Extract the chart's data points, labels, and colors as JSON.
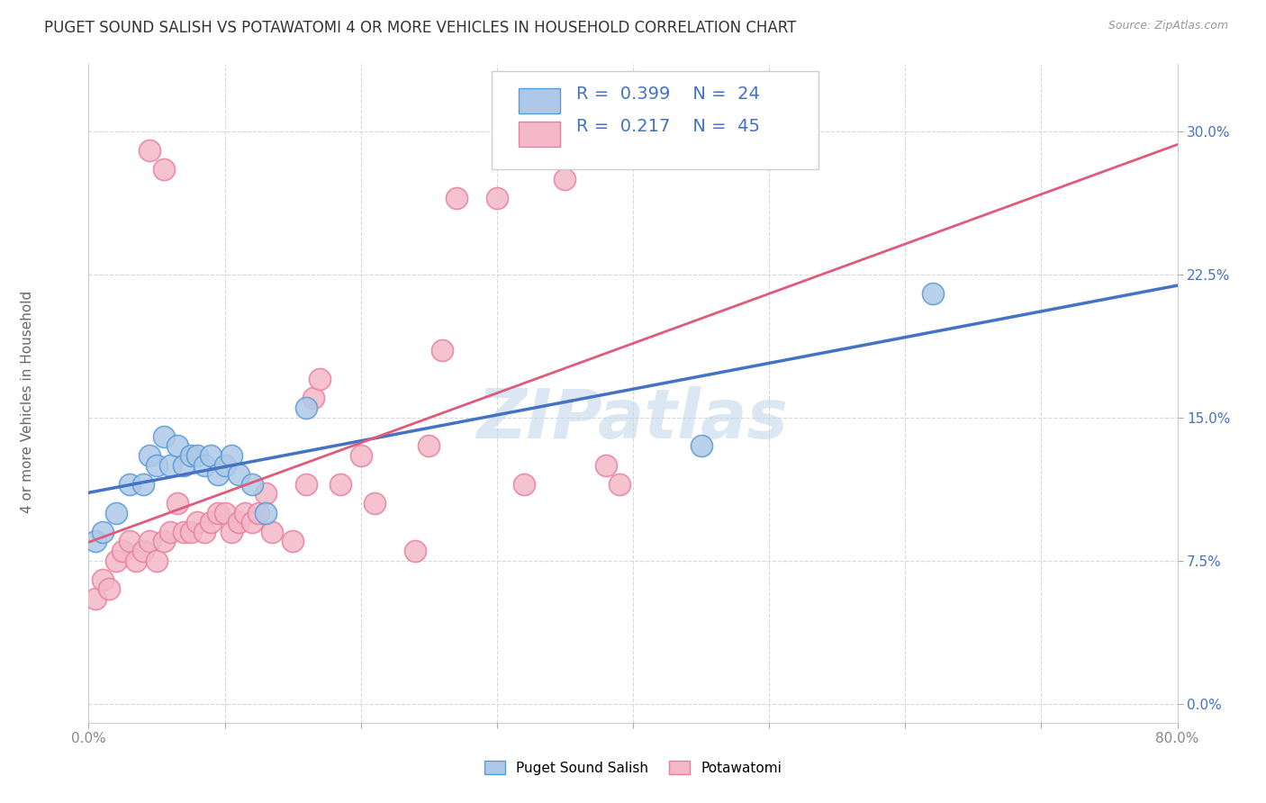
{
  "title": "PUGET SOUND SALISH VS POTAWATOMI 4 OR MORE VEHICLES IN HOUSEHOLD CORRELATION CHART",
  "source": "Source: ZipAtlas.com",
  "xlabel_blue": "Puget Sound Salish",
  "xlabel_pink": "Potawatomi",
  "ylabel": "4 or more Vehicles in Household",
  "xlim": [
    0.0,
    0.8
  ],
  "ylim": [
    -0.01,
    0.335
  ],
  "xticks": [
    0.0,
    0.1,
    0.2,
    0.3,
    0.4,
    0.5,
    0.6,
    0.7,
    0.8
  ],
  "xticklabels_show": [
    "0.0%",
    "",
    "",
    "",
    "",
    "",
    "",
    "",
    "80.0%"
  ],
  "yticks": [
    0.0,
    0.075,
    0.15,
    0.225,
    0.3
  ],
  "yticklabels": [
    "0.0%",
    "7.5%",
    "15.0%",
    "22.5%",
    "30.0%"
  ],
  "legend_R1": "0.399",
  "legend_N1": "24",
  "legend_R2": "0.217",
  "legend_N2": "45",
  "color_blue_fill": "#aec9e8",
  "color_blue_edge": "#5b9bd5",
  "color_pink_fill": "#f4b8c8",
  "color_pink_edge": "#e87fa0",
  "color_blue_line": "#4472c4",
  "color_pink_line": "#e05a7a",
  "color_blue_dashed": "#c8b8d0",
  "watermark": "ZIPatlas",
  "watermark_color": "#c5d8ee",
  "background_color": "#ffffff",
  "blue_x": [
    0.005,
    0.01,
    0.02,
    0.03,
    0.04,
    0.045,
    0.05,
    0.055,
    0.06,
    0.065,
    0.07,
    0.075,
    0.08,
    0.085,
    0.09,
    0.095,
    0.1,
    0.105,
    0.11,
    0.12,
    0.13,
    0.16,
    0.45,
    0.62
  ],
  "blue_y": [
    0.085,
    0.09,
    0.1,
    0.115,
    0.115,
    0.13,
    0.125,
    0.14,
    0.125,
    0.135,
    0.125,
    0.13,
    0.13,
    0.125,
    0.13,
    0.12,
    0.125,
    0.13,
    0.12,
    0.115,
    0.1,
    0.155,
    0.135,
    0.215
  ],
  "pink_x": [
    0.005,
    0.01,
    0.015,
    0.02,
    0.025,
    0.03,
    0.035,
    0.04,
    0.045,
    0.05,
    0.055,
    0.06,
    0.065,
    0.07,
    0.075,
    0.08,
    0.085,
    0.09,
    0.095,
    0.1,
    0.105,
    0.11,
    0.115,
    0.12,
    0.125,
    0.13,
    0.135,
    0.15,
    0.16,
    0.165,
    0.185,
    0.21,
    0.24,
    0.25,
    0.27,
    0.3,
    0.32,
    0.35,
    0.39,
    0.045,
    0.055,
    0.17,
    0.2,
    0.26,
    0.38
  ],
  "pink_y": [
    0.055,
    0.065,
    0.06,
    0.075,
    0.08,
    0.085,
    0.075,
    0.08,
    0.085,
    0.075,
    0.085,
    0.09,
    0.105,
    0.09,
    0.09,
    0.095,
    0.09,
    0.095,
    0.1,
    0.1,
    0.09,
    0.095,
    0.1,
    0.095,
    0.1,
    0.11,
    0.09,
    0.085,
    0.115,
    0.16,
    0.115,
    0.105,
    0.08,
    0.135,
    0.265,
    0.265,
    0.115,
    0.275,
    0.115,
    0.29,
    0.28,
    0.17,
    0.13,
    0.185,
    0.125
  ],
  "grid_color": "#d8d8d8",
  "tick_color_x": "#888888",
  "tick_color_y": "#4472c4",
  "title_fontsize": 12,
  "axis_label_fontsize": 11,
  "tick_fontsize": 11,
  "legend_fontsize": 14
}
